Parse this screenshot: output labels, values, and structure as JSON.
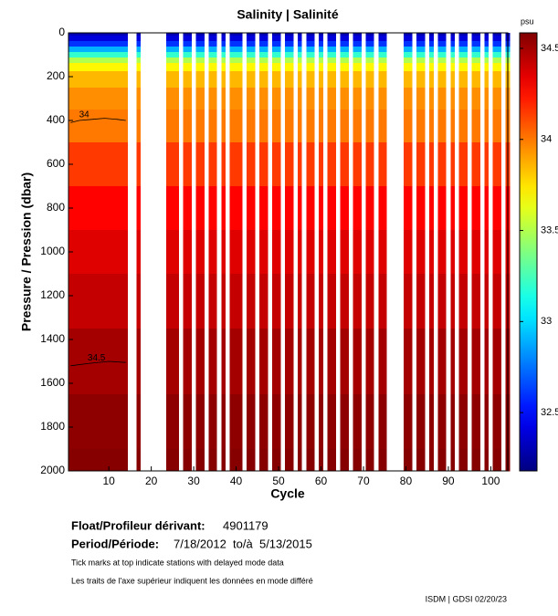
{
  "chart_data": {
    "type": "heatmap",
    "title": "Salinity | Salinité",
    "xlabel": "Cycle",
    "ylabel": "Pressure / Pression (dbar)",
    "colorbar_label": "psu",
    "xlim": [
      0.5,
      104
    ],
    "ylim": [
      2000,
      0
    ],
    "xticks": [
      10,
      20,
      30,
      40,
      50,
      60,
      70,
      80,
      90,
      100
    ],
    "yticks": [
      0,
      200,
      400,
      600,
      800,
      1000,
      1200,
      1400,
      1600,
      1800,
      2000
    ],
    "clim": [
      32.18,
      34.585
    ],
    "cticks": [
      32.5,
      33,
      33.5,
      34,
      34.5
    ],
    "cycles": [
      1,
      2,
      3,
      4,
      5,
      6,
      7,
      8,
      9,
      10,
      11,
      12,
      13,
      14,
      17,
      24,
      25,
      26,
      28,
      29,
      31,
      32,
      34,
      35,
      37,
      39,
      40,
      41,
      43,
      44,
      46,
      47,
      49,
      50,
      52,
      53,
      55,
      57,
      58,
      60,
      62,
      63,
      65,
      66,
      68,
      69,
      71,
      72,
      74,
      75,
      80,
      81,
      83,
      84,
      86,
      88,
      89,
      91,
      93,
      94,
      96,
      97,
      99,
      101,
      102,
      104
    ],
    "profile": {
      "pressure": [
        0,
        25,
        50,
        75,
        100,
        125,
        150,
        200,
        300,
        400,
        600,
        800,
        1000,
        1200,
        1500,
        1800,
        2000
      ],
      "salinity": [
        32.3,
        32.4,
        32.6,
        32.9,
        33.2,
        33.5,
        33.7,
        33.85,
        33.95,
        34.0,
        34.15,
        34.28,
        34.36,
        34.42,
        34.5,
        34.55,
        34.57
      ]
    },
    "contours": [
      {
        "level": 34,
        "x": [
          1,
          3,
          6,
          9,
          12,
          14
        ],
        "y": [
          410,
          400,
          395,
          390,
          395,
          400
        ]
      },
      {
        "level": 34.5,
        "x": [
          1,
          5,
          10,
          14
        ],
        "y": [
          1520,
          1510,
          1500,
          1505
        ]
      }
    ]
  },
  "info": {
    "float_label": "Float/Profileur dérivant:",
    "float_id": "4901179",
    "period_label": "Period/Période:",
    "period": "7/18/2012  to/à  5/13/2015",
    "note_en": "Tick marks at top indicate stations with delayed mode data",
    "note_fr": "Les traits de l'axe supérieur indiquent les données en mode différé",
    "footer": "ISDM | GDSI 02/20/23"
  }
}
